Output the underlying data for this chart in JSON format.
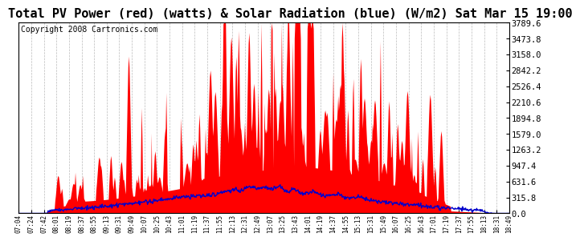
{
  "title": "Total PV Power (red) (watts) & Solar Radiation (blue) (W/m2) Sat Mar 15 19:00",
  "copyright": "Copyright 2008 Cartronics.com",
  "y_max": 3789.6,
  "y_min": 0.0,
  "y_ticks": [
    0.0,
    315.8,
    631.6,
    947.4,
    1263.2,
    1579.0,
    1894.8,
    2210.6,
    2526.4,
    2842.2,
    3158.0,
    3473.8,
    3789.6
  ],
  "x_labels": [
    "07:04",
    "07:24",
    "07:42",
    "08:01",
    "08:19",
    "08:37",
    "08:55",
    "09:13",
    "09:31",
    "09:49",
    "10:07",
    "10:25",
    "10:43",
    "11:01",
    "11:19",
    "11:37",
    "11:55",
    "12:13",
    "12:31",
    "12:49",
    "13:07",
    "13:25",
    "13:43",
    "14:01",
    "14:19",
    "14:37",
    "14:55",
    "15:13",
    "15:31",
    "15:49",
    "16:07",
    "16:25",
    "16:43",
    "17:01",
    "17:19",
    "17:37",
    "17:55",
    "18:13",
    "18:31",
    "18:49"
  ],
  "bg_color": "#ffffff",
  "grid_color": "#aaaaaa",
  "fill_color": "#ff0000",
  "line_color": "#0000cc",
  "title_fontsize": 11,
  "copyright_fontsize": 7,
  "peak_pv": 3789.6,
  "peak_sr": 720.0
}
